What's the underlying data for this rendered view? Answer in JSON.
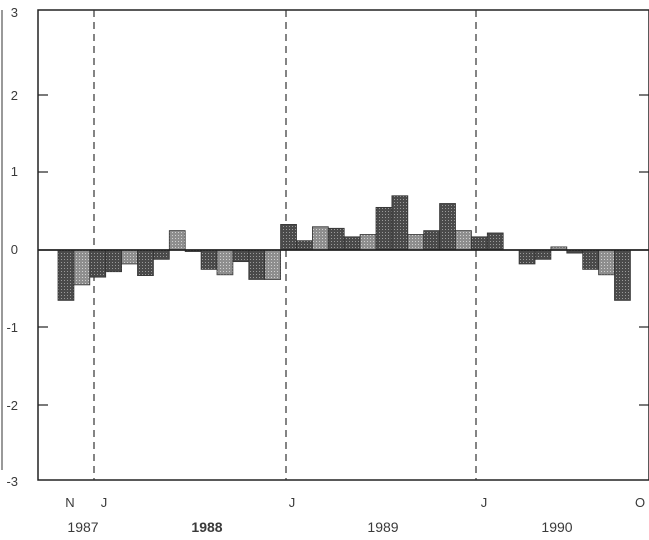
{
  "chart_data": {
    "type": "bar",
    "title": "",
    "xlabel": "",
    "ylabel": "",
    "ylim": [
      -3,
      3
    ],
    "yticks": [
      3,
      2,
      1,
      0,
      -1,
      -2,
      -3
    ],
    "grid": false,
    "legend": "none",
    "x_month_labels": [
      "N",
      "J",
      "J",
      "J",
      "O"
    ],
    "x_year_labels": [
      "1987",
      "1988",
      "1989",
      "1990"
    ],
    "dashed_marker_labels": [
      "J",
      "J",
      "J"
    ],
    "categories": [
      "1987-11",
      "1987-12",
      "1988-01",
      "1988-02",
      "1988-03",
      "1988-04",
      "1988-05",
      "1988-06",
      "1988-07",
      "1988-08",
      "1988-09",
      "1988-10",
      "1988-11",
      "1988-12",
      "1989-01",
      "1989-02",
      "1989-03",
      "1989-04",
      "1989-05",
      "1989-06",
      "1989-07",
      "1989-08",
      "1989-09",
      "1989-10",
      "1989-11",
      "1989-12",
      "1990-01",
      "1990-02",
      "1990-03",
      "1990-04",
      "1990-05",
      "1990-06",
      "1990-07",
      "1990-08",
      "1990-09",
      "1990-10"
    ],
    "values": [
      -0.65,
      -0.45,
      -0.35,
      -0.28,
      -0.18,
      -0.33,
      -0.12,
      0.25,
      -0.02,
      -0.25,
      -0.32,
      -0.15,
      -0.38,
      -0.38,
      0.33,
      0.12,
      0.3,
      0.28,
      0.17,
      0.2,
      0.55,
      0.7,
      0.2,
      0.25,
      0.6,
      0.25,
      0.17,
      0.22,
      0.0,
      -0.18,
      -0.12,
      0.04,
      -0.04,
      -0.25,
      -0.32,
      -0.65
    ]
  },
  "colors": {
    "bar_dark": "#5a5a5a",
    "bar_light": "#a8a8a8",
    "axis": "#222222",
    "dashed": "#333333"
  }
}
